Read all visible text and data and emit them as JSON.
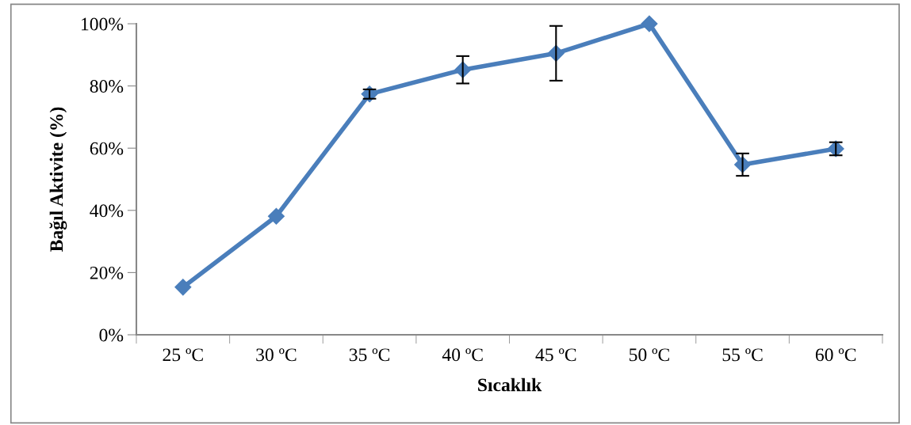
{
  "chart_data": {
    "type": "line",
    "xlabel": "Sıcaklık",
    "ylabel": "Bağıl Aktivite (%)",
    "categories": [
      "25 ºC",
      "30 ºC",
      "35 ºC",
      "40 ºC",
      "45 ºC",
      "50 ºC",
      "55 ºC",
      "60 ºC"
    ],
    "series": [
      {
        "color": "#4a7ebb",
        "values": [
          15.3,
          38.1,
          77.4,
          85.2,
          90.5,
          100,
          54.7,
          59.8
        ],
        "errors": [
          null,
          null,
          1.5,
          4.4,
          8.8,
          null,
          3.6,
          2.1
        ]
      }
    ],
    "ylim": [
      0,
      100
    ],
    "yticks": [
      {
        "value": 0,
        "label": "0%"
      },
      {
        "value": 20,
        "label": "20%"
      },
      {
        "value": 40,
        "label": "40%"
      },
      {
        "value": 60,
        "label": "60%"
      },
      {
        "value": 80,
        "label": "80%"
      },
      {
        "value": 100,
        "label": "100%"
      }
    ],
    "marker": "diamond",
    "line_style": "solid",
    "grid": false,
    "legend": false
  }
}
